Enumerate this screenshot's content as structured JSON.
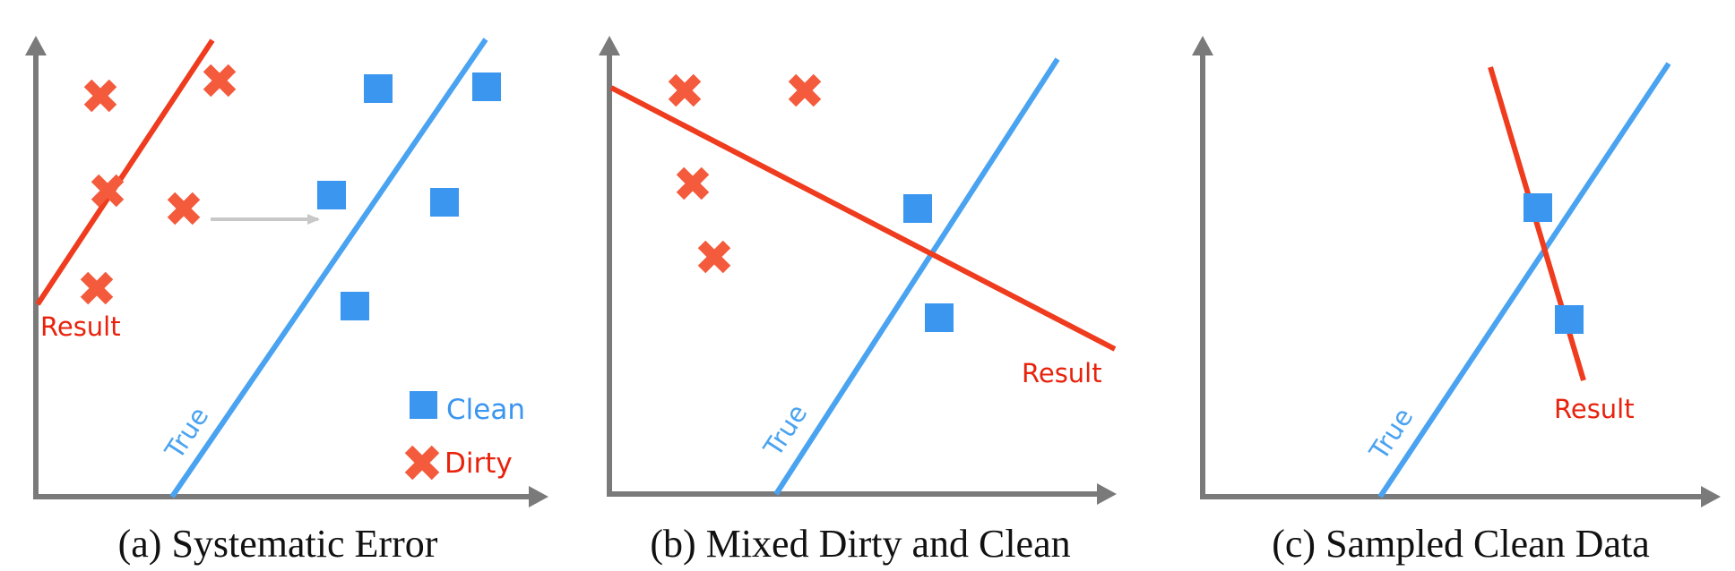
{
  "colors": {
    "dirty": "#f45a3c",
    "clean": "#3a96ee",
    "true_line": "#4aa3f0",
    "result_line": "#ef3b1e",
    "result_text": "#e8220c",
    "axis": "#7a7a7a",
    "shift_arrow": "#c8c8c8"
  },
  "icons": {
    "dirty": "x-mark-icon",
    "clean": "square-icon"
  },
  "panels": [
    {
      "caption": "(a) Systematic Error",
      "true_label": "True",
      "result_label": "Result",
      "legend": {
        "clean": "Clean",
        "dirty": "Dirty"
      }
    },
    {
      "caption": "(b) Mixed Dirty and Clean",
      "true_label": "True",
      "result_label": "Result"
    },
    {
      "caption": "(c) Sampled Clean Data",
      "true_label": "True",
      "result_label": "Result"
    }
  ]
}
